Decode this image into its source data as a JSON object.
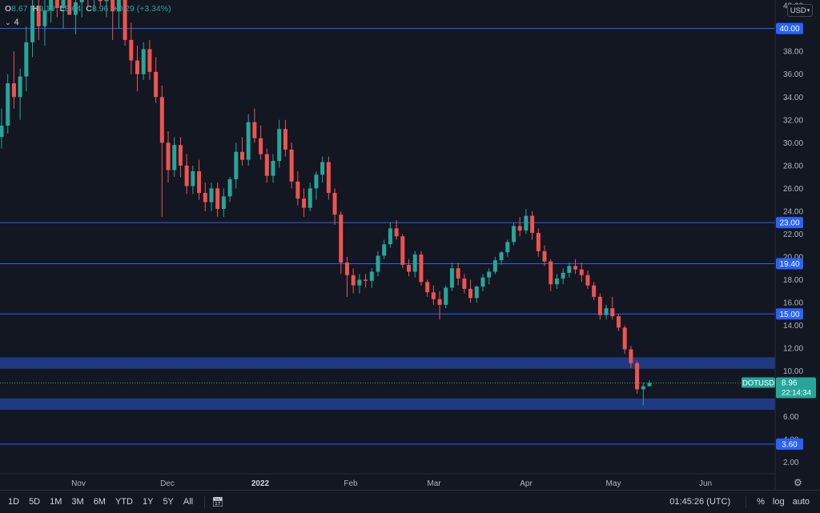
{
  "header": {
    "ohlc": [
      {
        "label": "O",
        "value": "8.67"
      },
      {
        "label": "H",
        "value": "9.19"
      },
      {
        "label": "L",
        "value": "8.64"
      },
      {
        "label": "C",
        "value": "8.96"
      },
      {
        "label": "",
        "value": "+0.29 (+3.34%)"
      }
    ],
    "indicator_count": "4",
    "currency": "USD"
  },
  "colors": {
    "up": "#26a69a",
    "down": "#ef5350",
    "level_line": "#2962ff",
    "zone": "#1f3a82",
    "background": "#131722"
  },
  "chart_data": {
    "type": "candlestick",
    "symbol": "DOTUSD",
    "x_labels": [
      "Nov",
      "Dec",
      "2022",
      "Feb",
      "Mar",
      "Apr",
      "May",
      "Jun"
    ],
    "y_ticks": [
      "2.00",
      "4.00",
      "6.00",
      "8.00",
      "10.00",
      "12.00",
      "14.00",
      "16.00",
      "18.00",
      "20.00",
      "22.00",
      "24.00",
      "26.00",
      "28.00",
      "30.00",
      "32.00",
      "34.00",
      "36.00",
      "38.00",
      "40.00",
      "42.00"
    ],
    "ylim": [
      1.0,
      42.5
    ],
    "horizontal_levels": [
      "40.00",
      "23.00",
      "19.40",
      "15.00",
      "3.60"
    ],
    "zones": [
      [
        10.2,
        11.2
      ],
      [
        6.6,
        7.6
      ]
    ],
    "last_price": "8.96",
    "countdown": "22:14:34",
    "candles": [
      [
        30.5,
        33.0,
        29.5,
        31.5
      ],
      [
        31.5,
        36.0,
        30.8,
        35.2
      ],
      [
        35.2,
        38.0,
        33.0,
        34.0
      ],
      [
        34.0,
        36.5,
        32.0,
        35.8
      ],
      [
        35.8,
        40.2,
        34.5,
        38.8
      ],
      [
        38.8,
        43.0,
        37.5,
        42.0
      ],
      [
        42.0,
        44.0,
        39.0,
        40.2
      ],
      [
        40.2,
        42.5,
        38.5,
        41.6
      ],
      [
        41.6,
        44.0,
        40.5,
        43.0
      ],
      [
        43.0,
        44.5,
        41.0,
        41.8
      ],
      [
        41.8,
        43.5,
        40.0,
        42.8
      ],
      [
        42.8,
        44.5,
        41.5,
        41.2
      ],
      [
        41.2,
        43.0,
        39.5,
        42.3
      ],
      [
        42.3,
        44.0,
        41.0,
        43.2
      ],
      [
        43.2,
        44.5,
        42.0,
        42.6
      ],
      [
        42.6,
        44.5,
        41.5,
        43.8
      ],
      [
        43.8,
        44.5,
        42.0,
        42.4
      ],
      [
        42.4,
        44.5,
        41.0,
        43.5
      ],
      [
        43.5,
        44.5,
        39.0,
        41.5
      ],
      [
        41.5,
        44.0,
        40.0,
        42.5
      ],
      [
        42.5,
        43.5,
        38.5,
        39.0
      ],
      [
        39.0,
        40.5,
        36.0,
        37.2
      ],
      [
        37.2,
        38.5,
        34.5,
        36.0
      ],
      [
        36.0,
        38.8,
        35.5,
        38.2
      ],
      [
        38.2,
        39.0,
        35.5,
        36.2
      ],
      [
        36.2,
        37.5,
        33.5,
        34.0
      ],
      [
        34.0,
        35.0,
        23.5,
        30.0
      ],
      [
        30.0,
        31.0,
        26.5,
        27.6
      ],
      [
        27.6,
        30.5,
        27.0,
        29.8
      ],
      [
        29.8,
        30.5,
        27.0,
        28.0
      ],
      [
        28.0,
        29.0,
        25.5,
        26.2
      ],
      [
        26.2,
        28.0,
        25.5,
        27.5
      ],
      [
        27.5,
        28.5,
        25.0,
        25.6
      ],
      [
        25.6,
        26.5,
        24.0,
        24.8
      ],
      [
        24.8,
        26.5,
        24.0,
        26.0
      ],
      [
        26.0,
        26.5,
        23.5,
        24.2
      ],
      [
        24.2,
        26.0,
        23.5,
        25.3
      ],
      [
        25.3,
        27.0,
        24.8,
        26.8
      ],
      [
        26.8,
        30.0,
        26.0,
        29.2
      ],
      [
        29.2,
        30.5,
        28.0,
        28.5
      ],
      [
        28.5,
        32.5,
        28.0,
        31.8
      ],
      [
        31.8,
        33.0,
        30.0,
        30.4
      ],
      [
        30.4,
        31.5,
        28.5,
        29.0
      ],
      [
        29.0,
        29.5,
        26.5,
        27.1
      ],
      [
        27.1,
        29.0,
        26.5,
        28.4
      ],
      [
        28.4,
        32.0,
        27.8,
        31.2
      ],
      [
        31.2,
        32.0,
        28.8,
        29.4
      ],
      [
        29.4,
        30.0,
        26.0,
        26.6
      ],
      [
        26.6,
        27.5,
        24.5,
        25.1
      ],
      [
        25.1,
        26.0,
        23.5,
        24.3
      ],
      [
        24.3,
        26.5,
        24.0,
        26.0
      ],
      [
        26.0,
        27.5,
        25.0,
        27.2
      ],
      [
        27.2,
        28.8,
        26.5,
        28.3
      ],
      [
        28.3,
        28.8,
        25.0,
        25.6
      ],
      [
        25.6,
        26.0,
        22.8,
        23.7
      ],
      [
        23.7,
        24.0,
        18.5,
        19.5
      ],
      [
        19.5,
        20.0,
        16.5,
        18.4
      ],
      [
        18.4,
        19.0,
        16.8,
        17.5
      ],
      [
        17.5,
        18.5,
        16.8,
        18.0
      ],
      [
        18.0,
        18.5,
        17.3,
        17.9
      ],
      [
        17.9,
        19.0,
        17.3,
        18.7
      ],
      [
        18.7,
        20.5,
        18.3,
        20.1
      ],
      [
        20.1,
        21.5,
        19.8,
        21.1
      ],
      [
        21.1,
        23.0,
        20.8,
        22.5
      ],
      [
        22.5,
        23.2,
        21.5,
        21.8
      ],
      [
        21.8,
        22.0,
        19.0,
        19.3
      ],
      [
        19.3,
        19.8,
        18.3,
        18.7
      ],
      [
        18.7,
        20.5,
        18.2,
        20.2
      ],
      [
        20.2,
        20.5,
        17.5,
        17.8
      ],
      [
        17.8,
        18.0,
        16.5,
        16.9
      ],
      [
        16.9,
        17.5,
        15.8,
        16.3
      ],
      [
        16.3,
        17.0,
        14.5,
        15.8
      ],
      [
        15.8,
        17.5,
        15.5,
        17.3
      ],
      [
        17.3,
        19.5,
        17.0,
        19.0
      ],
      [
        19.0,
        19.5,
        17.5,
        18.1
      ],
      [
        18.1,
        18.5,
        16.8,
        17.2
      ],
      [
        17.2,
        18.0,
        16.0,
        16.4
      ],
      [
        16.4,
        17.5,
        16.0,
        17.4
      ],
      [
        17.4,
        18.5,
        17.0,
        18.2
      ],
      [
        18.2,
        19.0,
        17.6,
        18.7
      ],
      [
        18.7,
        20.0,
        18.5,
        19.7
      ],
      [
        19.7,
        20.5,
        19.3,
        20.4
      ],
      [
        20.4,
        21.5,
        20.0,
        21.3
      ],
      [
        21.3,
        23.0,
        21.0,
        22.7
      ],
      [
        22.7,
        23.5,
        21.8,
        22.3
      ],
      [
        22.3,
        24.2,
        22.0,
        23.6
      ],
      [
        23.6,
        24.0,
        21.5,
        22.1
      ],
      [
        22.1,
        22.5,
        20.0,
        20.5
      ],
      [
        20.5,
        21.0,
        19.2,
        19.6
      ],
      [
        19.6,
        19.8,
        17.0,
        17.6
      ],
      [
        17.6,
        18.5,
        17.2,
        18.1
      ],
      [
        18.1,
        19.0,
        17.6,
        18.6
      ],
      [
        18.6,
        19.5,
        18.2,
        19.2
      ],
      [
        19.2,
        19.8,
        18.5,
        18.9
      ],
      [
        18.9,
        19.5,
        17.8,
        18.4
      ],
      [
        18.4,
        18.8,
        17.2,
        17.5
      ],
      [
        17.5,
        17.8,
        16.2,
        16.5
      ],
      [
        16.5,
        16.8,
        14.5,
        14.9
      ],
      [
        14.9,
        15.8,
        14.5,
        15.5
      ],
      [
        15.5,
        16.5,
        14.5,
        14.8
      ],
      [
        14.8,
        15.0,
        13.5,
        13.8
      ],
      [
        13.8,
        14.0,
        11.5,
        11.9
      ],
      [
        11.9,
        12.2,
        10.3,
        10.7
      ],
      [
        10.7,
        10.9,
        8.0,
        8.4
      ],
      [
        8.4,
        9.0,
        7.0,
        8.67
      ],
      [
        8.67,
        9.19,
        8.64,
        8.96
      ]
    ]
  },
  "time_ranges": [
    "1D",
    "5D",
    "1M",
    "3M",
    "6M",
    "YTD",
    "1Y",
    "5Y",
    "All"
  ],
  "clock": "01:45:26 (UTC)",
  "scale_options": [
    "%",
    "log",
    "auto"
  ]
}
